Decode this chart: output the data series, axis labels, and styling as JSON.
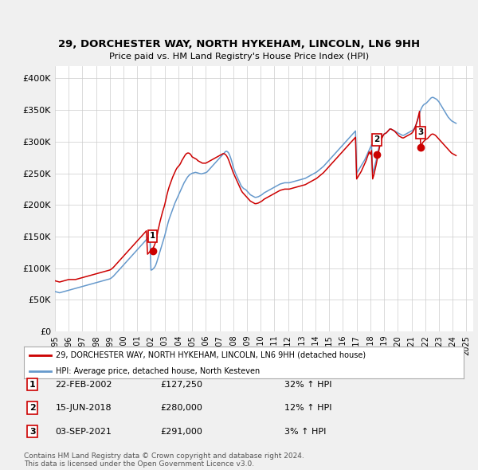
{
  "title": "29, DORCHESTER WAY, NORTH HYKEHAM, LINCOLN, LN6 9HH",
  "subtitle": "Price paid vs. HM Land Registry's House Price Index (HPI)",
  "ylabel_ticks": [
    "£0",
    "£50K",
    "£100K",
    "£150K",
    "£200K",
    "£250K",
    "£300K",
    "£350K",
    "£400K"
  ],
  "ytick_vals": [
    0,
    50000,
    100000,
    150000,
    200000,
    250000,
    300000,
    350000,
    400000
  ],
  "ylim": [
    0,
    420000
  ],
  "xlim_start": 1995.0,
  "xlim_end": 2025.5,
  "red_line_color": "#cc0000",
  "blue_line_color": "#6699cc",
  "sale_marker_color": "#cc0000",
  "legend_label_red": "29, DORCHESTER WAY, NORTH HYKEHAM, LINCOLN, LN6 9HH (detached house)",
  "legend_label_blue": "HPI: Average price, detached house, North Kesteven",
  "sales": [
    {
      "num": 1,
      "year": 2002.12,
      "price": 127250,
      "label": "1"
    },
    {
      "num": 2,
      "year": 2018.45,
      "price": 280000,
      "label": "2"
    },
    {
      "num": 3,
      "year": 2021.67,
      "price": 291000,
      "label": "3"
    }
  ],
  "table_rows": [
    {
      "num": "1",
      "date": "22-FEB-2002",
      "price": "£127,250",
      "change": "32% ↑ HPI"
    },
    {
      "num": "2",
      "date": "15-JUN-2018",
      "price": "£280,000",
      "change": "12% ↑ HPI"
    },
    {
      "num": "3",
      "date": "03-SEP-2021",
      "price": "£291,000",
      "change": "3% ↑ HPI"
    }
  ],
  "footer": "Contains HM Land Registry data © Crown copyright and database right 2024.\nThis data is licensed under the Open Government Licence v3.0.",
  "background_color": "#f0f0f0",
  "plot_bg_color": "#ffffff"
}
